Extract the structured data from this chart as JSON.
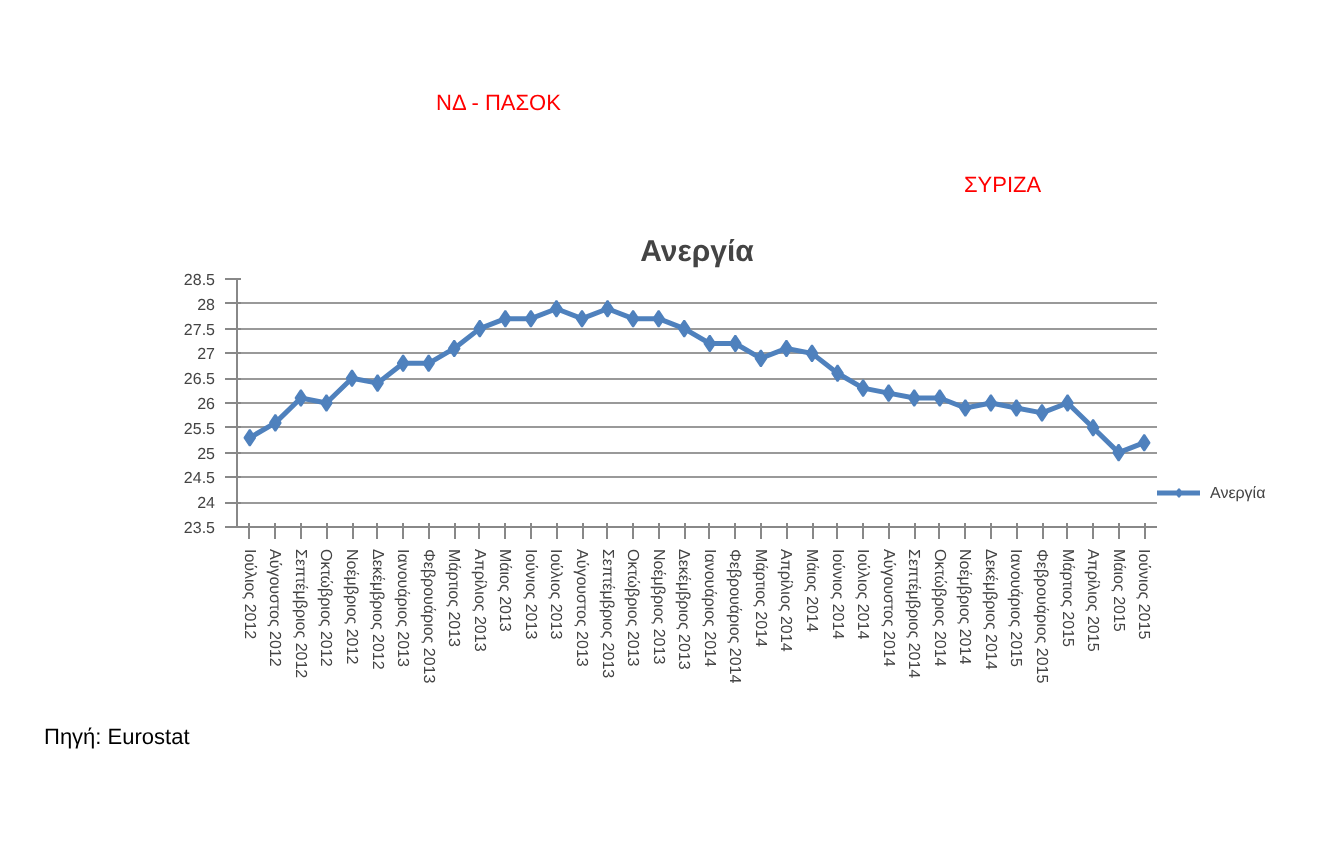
{
  "chart_data": {
    "type": "line",
    "title": "Ανεργία",
    "categories": [
      "Ιούλιος 2012",
      "Αύγουστος 2012",
      "Σεπτέμβριος 2012",
      "Οκτώβριος 2012",
      "Νοέμβριος 2012",
      "Δεκέμβριος 2012",
      "Ιανουάριος 2013",
      "Φεβρουάριος 2013",
      "Μάρτιος 2013",
      "Απρίλιος 2013",
      "Μάιος 2013",
      "Ιούνιος 2013",
      "Ιούλιος 2013",
      "Αύγουστος 2013",
      "Σεπτέμβριος 2013",
      "Οκτώβριος 2013",
      "Νοέμβριος 2013",
      "Δεκέμβριος 2013",
      "Ιανουάριος 2014",
      "Φεβρουάριος 2014",
      "Μάρτιος 2014",
      "Απρίλιος 2014",
      "Μάιος 2014",
      "Ιούνιος 2014",
      "Ιούλιος 2014",
      "Αύγουστος 2014",
      "Σεπτέμβριος 2014",
      "Οκτώβριος 2014",
      "Νοέμβριος 2014",
      "Δεκέμβριος 2014",
      "Ιανουάριος 2015",
      "Φεβρουάριος 2015",
      "Μάρτιος 2015",
      "Απρίλιος 2015",
      "Μάιος 2015",
      "Ιούνιος 2015"
    ],
    "series": [
      {
        "name": "Ανεργία",
        "color": "#4f81bd",
        "values": [
          25.3,
          25.6,
          26.1,
          26.0,
          26.5,
          26.4,
          26.8,
          26.8,
          27.1,
          27.5,
          27.7,
          27.7,
          27.9,
          27.7,
          27.9,
          27.7,
          27.7,
          27.5,
          27.2,
          27.2,
          26.9,
          27.1,
          27.0,
          26.6,
          26.3,
          26.2,
          26.1,
          26.1,
          25.9,
          26.0,
          25.9,
          25.8,
          26.0,
          25.5,
          25.0,
          25.2
        ]
      }
    ],
    "ylim": [
      23.5,
      28.5
    ],
    "yticks": [
      23.5,
      24,
      24.5,
      25,
      25.5,
      26,
      26.5,
      27,
      27.5,
      28,
      28.5
    ],
    "grid": "y",
    "legend": "right",
    "marker": "diamond",
    "line_style": "solid",
    "annotations": [
      "ΝΔ - ΠΑΣΟΚ",
      "ΣΥΡΙΖΑ",
      "Πηγή: Eurostat"
    ]
  }
}
